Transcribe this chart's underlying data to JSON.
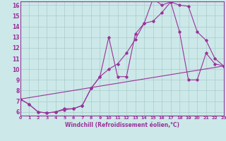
{
  "xlabel": "Windchill (Refroidissement éolien,°C)",
  "bg_color": "#cce8e8",
  "line_color": "#993399",
  "grid_color": "#aacccc",
  "xmin": 0,
  "xmax": 23,
  "ymin": 6,
  "ymax": 16,
  "line1_x": [
    0,
    1,
    2,
    3,
    4,
    5,
    6,
    7,
    8,
    9,
    10,
    11,
    12,
    13,
    14,
    15,
    16,
    17,
    18,
    19,
    20,
    21,
    22,
    23
  ],
  "line1_y": [
    7.2,
    6.7,
    6.0,
    5.9,
    6.0,
    6.3,
    6.3,
    6.6,
    8.2,
    9.3,
    13.0,
    9.3,
    9.3,
    13.3,
    14.3,
    16.6,
    16.0,
    16.3,
    13.5,
    9.0,
    9.0,
    11.5,
    10.5,
    10.3
  ],
  "line2_x": [
    0,
    1,
    2,
    3,
    4,
    5,
    6,
    7,
    8,
    9,
    10,
    11,
    12,
    13,
    14,
    15,
    16,
    17,
    18,
    19,
    20,
    21,
    22,
    23
  ],
  "line2_y": [
    7.2,
    6.7,
    6.0,
    5.9,
    6.0,
    6.2,
    6.3,
    6.6,
    8.2,
    9.3,
    10.0,
    10.5,
    11.5,
    12.8,
    14.3,
    14.5,
    15.3,
    16.3,
    16.0,
    15.9,
    13.5,
    12.7,
    11.0,
    10.3
  ],
  "line3_x": [
    0,
    23
  ],
  "line3_y": [
    7.2,
    10.3
  ]
}
